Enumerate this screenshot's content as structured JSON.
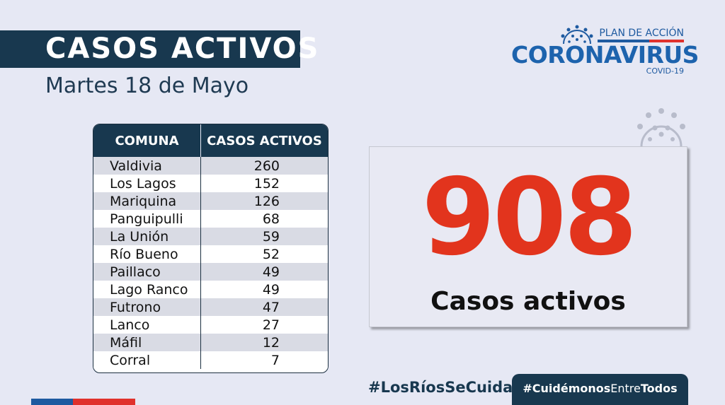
{
  "header": {
    "title": "CASOS ACTIVOS",
    "subtitle": "Martes 18 de Mayo"
  },
  "logo": {
    "line1": "PLAN DE ACCIÓN",
    "line2": "CORONAVIRUS",
    "line3": "COVID-19"
  },
  "table": {
    "headers": [
      "COMUNA",
      "CASOS ACTIVOS"
    ],
    "rows": [
      {
        "comuna": "Valdivia",
        "casos": "260"
      },
      {
        "comuna": "Los Lagos",
        "casos": "152"
      },
      {
        "comuna": "Mariquina",
        "casos": "126"
      },
      {
        "comuna": "Panguipulli",
        "casos": "68"
      },
      {
        "comuna": "La Unión",
        "casos": "59"
      },
      {
        "comuna": "Río Bueno",
        "casos": "52"
      },
      {
        "comuna": "Paillaco",
        "casos": "49"
      },
      {
        "comuna": "Lago Ranco",
        "casos": "49"
      },
      {
        "comuna": "Futrono",
        "casos": "47"
      },
      {
        "comuna": "Lanco",
        "casos": "27"
      },
      {
        "comuna": "Máfil",
        "casos": "12"
      },
      {
        "comuna": "Corral",
        "casos": "7"
      }
    ]
  },
  "total": {
    "number": "908",
    "label": "Casos activos"
  },
  "footer": {
    "hashtag1": "#LosRíosSeCuida",
    "hashtag2_bold1": "#Cuidémonos",
    "hashtag2_light": "Entre",
    "hashtag2_bold2": "Todos"
  },
  "colors": {
    "navy": "#18384f",
    "red": "#e2341d",
    "blue": "#1d63ad",
    "background": "#e6e8f4"
  },
  "icons": [
    "coronavirus-icon",
    "coronavirus-deco-icon"
  ]
}
